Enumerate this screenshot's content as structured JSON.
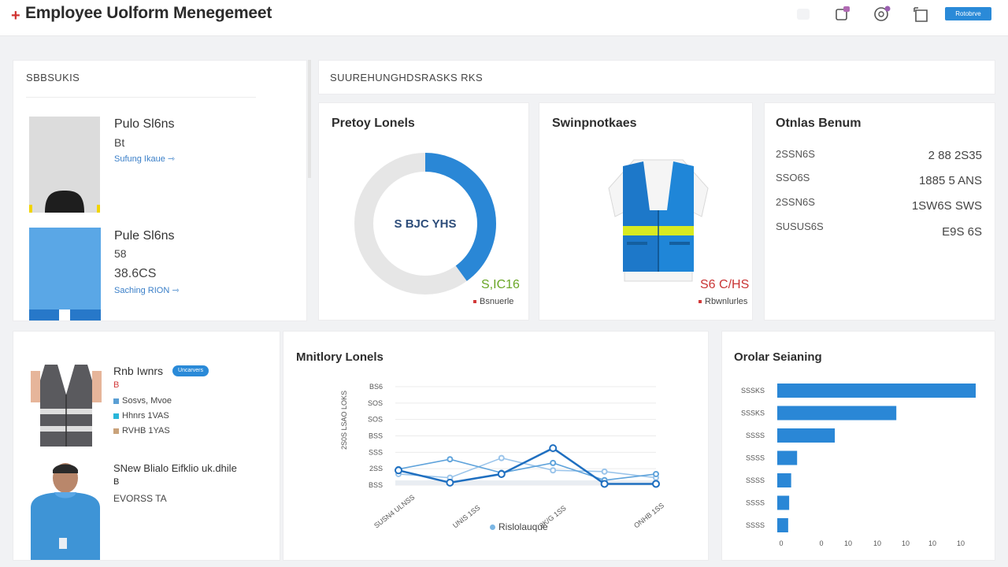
{
  "header": {
    "brand_mark": "+",
    "title": "Employee Uolform Menegemeet",
    "action_label": "Rotobrve",
    "icons": [
      "blank-icon",
      "notifications-icon",
      "settings-icon",
      "fullscreen-icon"
    ]
  },
  "sidebar": {
    "heading": "SBBSUKIS",
    "items": [
      {
        "name": "Pulo Sl6ns",
        "meta1": "Bt",
        "meta2": "",
        "link": "Sufung Ikaue ⇾"
      },
      {
        "name": "Pule Sl6ns",
        "meta1": "58",
        "meta2": "38.6CS",
        "link": "Saching RION ⇾"
      }
    ]
  },
  "summary": {
    "heading": "SUUREHUNGHDSRASKS RKS"
  },
  "donut_card": {
    "title": "Pretoy Lonels",
    "center_text": "S BJC YHS",
    "value": "S,IC16",
    "legend": "Bsnuerle",
    "chart_data": {
      "type": "pie",
      "values": [
        40,
        60
      ],
      "colors": [
        "#2a87d6",
        "#e6e6e6"
      ]
    }
  },
  "vest_card": {
    "title": "Swinpnotkaes",
    "value": "S6 C/HS",
    "legend": "Rbwnlurles"
  },
  "stats_card": {
    "title": "Otnlas Benum",
    "rows": [
      {
        "label": "2SSN6S",
        "value": "2 88 2S35"
      },
      {
        "label": "SSO6S",
        "value": "1885 5 ANS"
      },
      {
        "label": "2SSN6S",
        "value": "1SW6S SWS"
      },
      {
        "label": "SUSUS6S",
        "value": "E9S 6S"
      }
    ]
  },
  "people": {
    "items": [
      {
        "name": "Rnb Iwnrs",
        "badge": "Uncarvers",
        "bullet_top": "B",
        "bullet_top_color": "#d23a3a",
        "lines": [
          {
            "text": "Sosvs, Mvoe",
            "color": "#5a9fd4"
          },
          {
            "text": "Hhnrs 1VAS",
            "color": "#29b6d9"
          },
          {
            "text": "RVHB 1YAS",
            "color": "#c9a27a"
          }
        ]
      },
      {
        "name": "SNew Blialo Eifklio uk.dhile",
        "bullet_top": "B",
        "bullet_top_color": "#d23a3a",
        "lines": [
          {
            "text": "EVORSS TA",
            "color": ""
          }
        ]
      }
    ]
  },
  "line_card": {
    "title": "Mnitlory Lonels",
    "legend": "Rislolauque",
    "ylabel": "2S0S LSAO LOKS",
    "chart_data": {
      "type": "line",
      "y_ticks": [
        "BS6",
        "SOS",
        "SOS",
        "BSS",
        "SSS",
        "2SS",
        "BSS"
      ],
      "x_ticks": [
        "SUSN4 ULNSS",
        "UNIS 1SS",
        "9K/G 1SS",
        "ONHB 1SS"
      ],
      "x": [
        0,
        1,
        2,
        3,
        4,
        5
      ],
      "series": [
        {
          "values": [
            0.6,
            0.1,
            0.45,
            1.5,
            0.05,
            0.05
          ],
          "color": "#1f6fc0"
        },
        {
          "values": [
            0.65,
            1.05,
            0.5,
            0.9,
            0.2,
            0.45
          ],
          "color": "#5fa3db"
        },
        {
          "values": [
            0.45,
            0.3,
            1.1,
            0.6,
            0.55,
            0.3
          ],
          "color": "#9ac4ea"
        }
      ],
      "ylim": [
        0,
        4
      ]
    }
  },
  "bar_card": {
    "title": "Orolar Seianing",
    "chart_data": {
      "type": "bar",
      "orientation": "horizontal",
      "categories": [
        "SSSKS",
        "SSSKS",
        "SSSS",
        "SSSS",
        "SSSS",
        "SSSS",
        "SSSS"
      ],
      "values": [
        100,
        60,
        29,
        10,
        7,
        6,
        5.5
      ],
      "x_ticks": [
        "0",
        "0",
        "10",
        "10",
        "10",
        "10",
        "10"
      ],
      "color": "#2a87d6"
    }
  }
}
